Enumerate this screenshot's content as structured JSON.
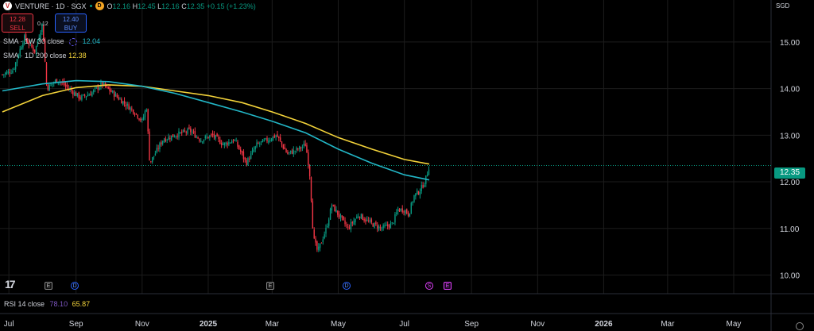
{
  "header": {
    "logo_icon": "venture-logo-icon",
    "title": "VENTURE · 1D · SGX",
    "open_badge": "D",
    "ohlc": {
      "o_label": "O",
      "o": "12.16",
      "h_label": "H",
      "h": "12.45",
      "l_label": "L",
      "l": "12.16",
      "c_label": "C",
      "c": "12.35",
      "change": "+0.15 (+1.23%)"
    }
  },
  "trade": {
    "sell_price": "12.28",
    "sell_label": "SELL",
    "spread": "0.12",
    "buy_price": "12.40",
    "buy_label": "BUY"
  },
  "indicators": [
    {
      "label": "SMA · 1W 30 close",
      "value": "12.04",
      "color": "#22b6c6"
    },
    {
      "label": "SMA · 1D 200 close",
      "value": "12.38",
      "color": "#f3d33a"
    }
  ],
  "rsi": {
    "label": "RSI 14 close",
    "value1": "78.10",
    "value2": "65.87"
  },
  "currency": "SGD",
  "last_price": "12.35",
  "events": {
    "earnings": "E",
    "dividend": "D",
    "split": "S"
  },
  "colors": {
    "up": "#089981",
    "down": "#f23645",
    "sma30": "#22b6c6",
    "sma200": "#f3d33a",
    "background": "#000000"
  },
  "chart_data": {
    "type": "candlestick",
    "y_ticks": [
      "15.00",
      "14.00",
      "13.00",
      "12.00",
      "11.00",
      "10.00"
    ],
    "ylim": [
      9.6,
      15.9
    ],
    "x_ticks": [
      {
        "label": "Jul",
        "type": "month"
      },
      {
        "label": "Sep",
        "type": "month"
      },
      {
        "label": "Nov",
        "type": "month"
      },
      {
        "label": "2025",
        "type": "year"
      },
      {
        "label": "Mar",
        "type": "month"
      },
      {
        "label": "May",
        "type": "month"
      },
      {
        "label": "Jul",
        "type": "month"
      },
      {
        "label": "Sep",
        "type": "month"
      },
      {
        "label": "Nov",
        "type": "month"
      },
      {
        "label": "2026",
        "type": "year"
      },
      {
        "label": "Mar",
        "type": "month"
      },
      {
        "label": "May",
        "type": "month"
      }
    ],
    "close_path": [
      [
        "2024-06-25",
        14.3
      ],
      [
        "2024-07-05",
        14.4
      ],
      [
        "2024-07-15",
        15.1
      ],
      [
        "2024-07-25",
        14.8
      ],
      [
        "2024-08-01",
        15.4
      ],
      [
        "2024-08-05",
        14.0
      ],
      [
        "2024-08-15",
        14.2
      ],
      [
        "2024-08-25",
        14.0
      ],
      [
        "2024-09-05",
        13.8
      ],
      [
        "2024-09-15",
        13.9
      ],
      [
        "2024-09-25",
        14.1
      ],
      [
        "2024-10-05",
        13.9
      ],
      [
        "2024-10-15",
        13.7
      ],
      [
        "2024-10-25",
        13.5
      ],
      [
        "2024-11-01",
        13.3
      ],
      [
        "2024-11-05",
        13.6
      ],
      [
        "2024-11-08",
        12.4
      ],
      [
        "2024-11-20",
        12.9
      ],
      [
        "2024-12-01",
        13.0
      ],
      [
        "2024-12-15",
        13.1
      ],
      [
        "2024-12-25",
        12.9
      ],
      [
        "2025-01-05",
        13.0
      ],
      [
        "2025-01-15",
        12.8
      ],
      [
        "2025-01-25",
        12.9
      ],
      [
        "2025-02-01",
        12.6
      ],
      [
        "2025-02-05",
        12.4
      ],
      [
        "2025-02-15",
        12.8
      ],
      [
        "2025-02-25",
        12.9
      ],
      [
        "2025-03-05",
        13.0
      ],
      [
        "2025-03-15",
        12.6
      ],
      [
        "2025-03-25",
        12.7
      ],
      [
        "2025-04-01",
        12.8
      ],
      [
        "2025-04-05",
        12.1
      ],
      [
        "2025-04-08",
        10.8
      ],
      [
        "2025-04-12",
        10.5
      ],
      [
        "2025-04-20",
        11.0
      ],
      [
        "2025-04-25",
        11.5
      ],
      [
        "2025-05-01",
        11.3
      ],
      [
        "2025-05-10",
        11.0
      ],
      [
        "2025-05-20",
        11.3
      ],
      [
        "2025-05-25",
        11.2
      ],
      [
        "2025-06-01",
        11.1
      ],
      [
        "2025-06-10",
        11.0
      ],
      [
        "2025-06-20",
        11.1
      ],
      [
        "2025-06-25",
        11.4
      ],
      [
        "2025-07-01",
        11.4
      ],
      [
        "2025-07-05",
        11.3
      ],
      [
        "2025-07-10",
        11.7
      ],
      [
        "2025-07-15",
        11.8
      ],
      [
        "2025-07-20",
        12.0
      ],
      [
        "2025-07-24",
        12.35
      ]
    ],
    "sma_1w_30": [
      [
        "2024-06-25",
        13.95
      ],
      [
        "2024-08-01",
        14.1
      ],
      [
        "2024-09-01",
        14.17
      ],
      [
        "2024-10-01",
        14.15
      ],
      [
        "2024-11-01",
        14.05
      ],
      [
        "2024-12-01",
        13.9
      ],
      [
        "2025-01-01",
        13.7
      ],
      [
        "2025-02-01",
        13.5
      ],
      [
        "2025-03-01",
        13.3
      ],
      [
        "2025-04-01",
        13.05
      ],
      [
        "2025-05-01",
        12.7
      ],
      [
        "2025-06-01",
        12.4
      ],
      [
        "2025-07-01",
        12.15
      ],
      [
        "2025-07-24",
        12.04
      ]
    ],
    "sma_1d_200": [
      [
        "2024-06-25",
        13.5
      ],
      [
        "2024-08-01",
        13.85
      ],
      [
        "2024-09-01",
        14.02
      ],
      [
        "2024-10-01",
        14.08
      ],
      [
        "2024-11-01",
        14.05
      ],
      [
        "2024-12-01",
        13.95
      ],
      [
        "2025-01-01",
        13.85
      ],
      [
        "2025-02-01",
        13.7
      ],
      [
        "2025-03-01",
        13.5
      ],
      [
        "2025-04-01",
        13.25
      ],
      [
        "2025-05-01",
        12.95
      ],
      [
        "2025-06-01",
        12.7
      ],
      [
        "2025-07-01",
        12.48
      ],
      [
        "2025-07-24",
        12.38
      ]
    ],
    "last_price": 12.35
  }
}
